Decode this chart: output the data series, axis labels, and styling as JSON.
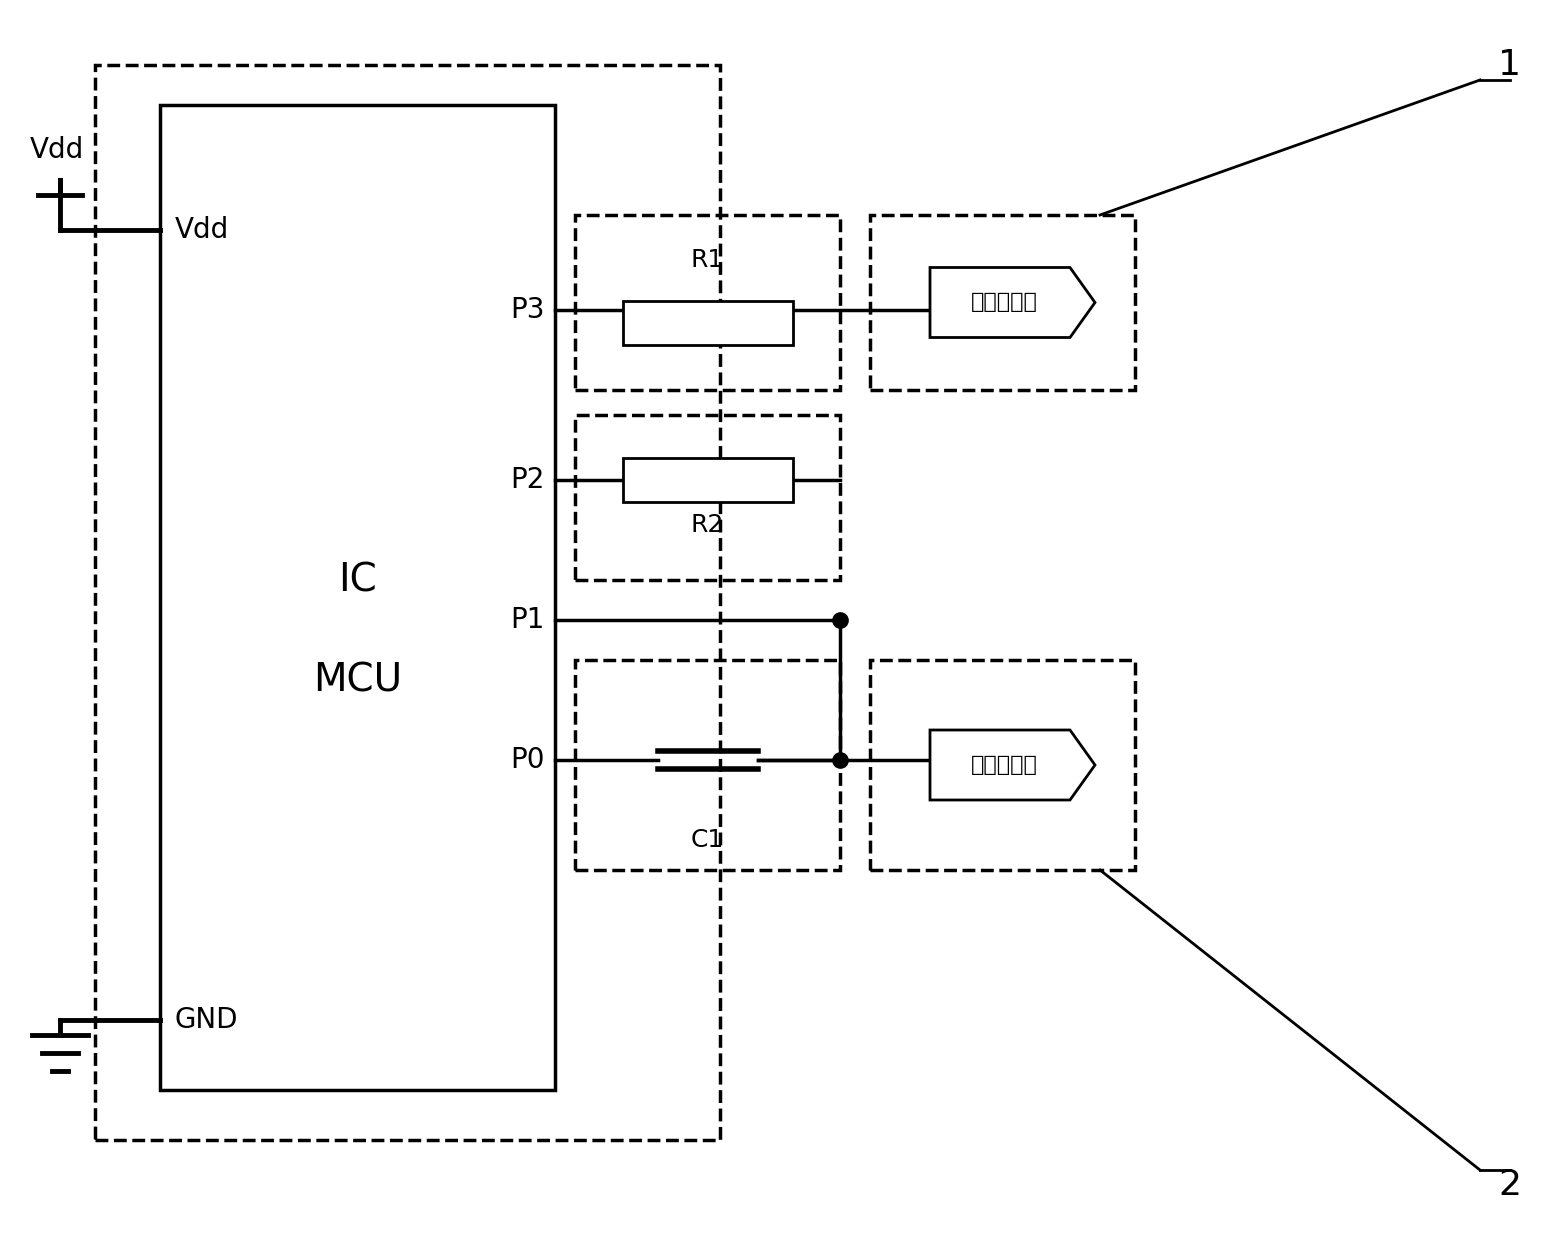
{
  "bg_color": "#ffffff",
  "line_color": "#000000",
  "fig_width": 15.6,
  "fig_height": 12.48,
  "labels": {
    "vdd_label": "Vdd",
    "gnd_label": "GND",
    "ic_label": "IC",
    "mcu_label": "MCU",
    "p3_label": "P3",
    "p2_label": "P2",
    "p1_label": "P1",
    "p0_label": "P0",
    "vdd_pin_label": "Vdd",
    "r1_label": "R1",
    "r2_label": "R2",
    "c1_label": "C1",
    "conn1_label": "第一连接器",
    "conn2_label": "第二连接器",
    "num1_label": "1",
    "num2_label": "2"
  }
}
